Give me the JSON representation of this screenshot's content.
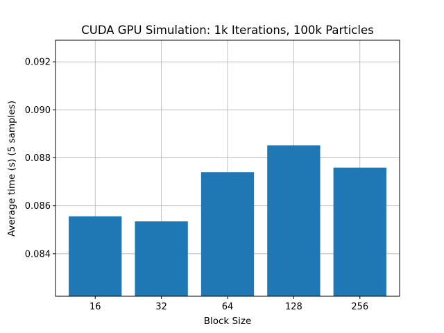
{
  "chart_data": {
    "type": "bar",
    "title": "CUDA GPU Simulation: 1k Iterations, 100k Particles",
    "xlabel": "Block Size",
    "ylabel": "Average time (s) (5 samples)",
    "categories": [
      "16",
      "32",
      "64",
      "128",
      "256"
    ],
    "values": [
      0.08556,
      0.08535,
      0.0874,
      0.08852,
      0.08759
    ],
    "ylim": [
      0.08223,
      0.0929
    ],
    "yticks": [
      0.084,
      0.086,
      0.088,
      0.09,
      0.092
    ],
    "ytick_labels": [
      "0.084",
      "0.086",
      "0.088",
      "0.090",
      "0.092"
    ],
    "grid": true,
    "bar_color": "#1f77b4"
  }
}
